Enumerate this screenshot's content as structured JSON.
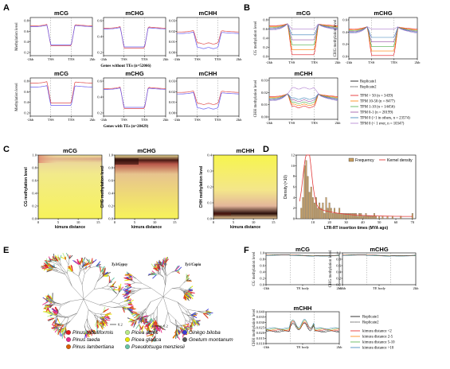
{
  "panel_letters": [
    "A",
    "B",
    "C",
    "D",
    "E",
    "F"
  ],
  "panelA": {
    "titles": [
      "mCG",
      "mCHG",
      "mCHH"
    ],
    "ylabel": "Methylation level",
    "xticks": [
      "-2kb",
      "TSS",
      "TES",
      "2kb"
    ],
    "captions": [
      "Genes without TEs (n=52066)",
      "Genes with TEs (n=28429)"
    ],
    "yticks": [
      [
        "0.8",
        "0.6",
        "0.4",
        "0.2"
      ],
      [
        "0.6",
        "0.4",
        "0.2"
      ],
      [
        "0.03",
        "0.02",
        "0.01",
        "0.00"
      ],
      [
        "0.8",
        "0.6",
        "0.4",
        "0.2"
      ],
      [
        "0.6",
        "0.4",
        "0.2"
      ],
      [
        "0.03",
        "0.02",
        "0.01",
        "0.00"
      ]
    ]
  },
  "panelB": {
    "titles": [
      "mCG",
      "mCHG",
      "mCHH"
    ],
    "ylabels": [
      "CG methylation level",
      "CHG methylation level",
      "CHH methylation level"
    ],
    "xticks": [
      "-2kb",
      "TSS",
      "TES",
      "2kb"
    ],
    "yticks": [
      [
        "0.8",
        "0.6",
        "0.4",
        "0.2",
        "0.0"
      ],
      [
        "0.6",
        "0.4",
        "0.2",
        "0.0"
      ],
      [
        "0.03",
        "0.02",
        "0.01",
        "0.00"
      ]
    ],
    "legend": [
      {
        "label": "Replicate1",
        "color": "#000000",
        "style": "solid"
      },
      {
        "label": "Replicate2",
        "color": "#000000",
        "style": "dash"
      },
      {
        "label": "TPM > 50 (n = 3439)",
        "color": "#e41a1c",
        "style": "solid"
      },
      {
        "label": "TPM 10-50 (n = 8477)",
        "color": "#ff7f00",
        "style": "solid"
      },
      {
        "label": "TPM 1-10 (n = 14456)",
        "color": "#4daf4a",
        "style": "solid"
      },
      {
        "label": "TPM 0-1 (n = 20199)",
        "color": "#984ea3",
        "style": "solid"
      },
      {
        "label": "TPM 0 (>1 in others, n = 23574)",
        "color": "#377eb8",
        "style": "solid"
      },
      {
        "label": "TPM 0 (< 1 ever, n = 10347)",
        "color": "#b07fd0",
        "style": "solid"
      }
    ]
  },
  "panelC": {
    "titles": [
      "mCG",
      "mCHG",
      "mCHH"
    ],
    "ylabels": [
      "CG methylation level",
      "CHG methylation level",
      "CHH methylation level"
    ],
    "xlabel": "kimura distance",
    "xticks": [
      "0",
      "5",
      "10",
      "15"
    ],
    "yticks": [
      [
        "1.0",
        "0.8",
        "0.6",
        "0.4",
        "0.2",
        "0.0"
      ],
      [
        "1.0",
        "0.8",
        "0.6",
        "0.4",
        "0.2",
        "0.0"
      ],
      [
        "0.4",
        "0.3",
        "0.2",
        "0.1",
        "0.0"
      ]
    ]
  },
  "panelD": {
    "ylabel": "Density (×10)",
    "xlabel": "LTR-RT insertion times (MYA ago)",
    "xticks": [
      "10",
      "20",
      "30",
      "40",
      "50",
      "60",
      "70"
    ],
    "yticks": [
      "12",
      "10",
      "8",
      "6",
      "4",
      "2",
      "0"
    ],
    "legend": [
      "Frequency",
      "Kernel density"
    ],
    "colors": {
      "bar": "#c9a063",
      "line": "#e23b3b"
    }
  },
  "panelE": {
    "tree_titles": [
      "Ty3/Gypsy",
      "Ty1/Copia"
    ],
    "scale": "0.2",
    "species": [
      {
        "name": "Pinus tabuliformis",
        "color": "#e41a1c"
      },
      {
        "name": "Pinus taeda",
        "color": "#e7298a"
      },
      {
        "name": "Pinus lambertiana",
        "color": "#d95f02"
      },
      {
        "name": "Picea abies",
        "color": "#b8e986"
      },
      {
        "name": "Picea glauca",
        "color": "#e6e600"
      },
      {
        "name": "Pseudotsuga menziesii",
        "color": "#66c2a5"
      },
      {
        "name": "Ginkgo biloba",
        "color": "#3b3bd6"
      },
      {
        "name": "Gnetum montanum",
        "color": "#555555"
      }
    ]
  },
  "panelF": {
    "titles": [
      "mCG",
      "mCHG",
      "mCHH"
    ],
    "ylabels": [
      "CG methylation level",
      "CHG methylation level",
      "CHH methylation level"
    ],
    "xticks": [
      "-2kb",
      "TE body",
      "2kb"
    ],
    "yticks": [
      [
        "1.0",
        "0.8",
        "0.6",
        "0.4",
        "0.2",
        "0.0"
      ],
      [
        "1.0",
        "0.8",
        "0.6",
        "0.4",
        "0.2",
        "0.0"
      ],
      [
        "0.040",
        "0.035",
        "0.030",
        "0.025",
        "0.020",
        "0.015",
        "0.010"
      ]
    ],
    "legend": [
      {
        "label": "Replicate1",
        "color": "#000000",
        "style": "solid"
      },
      {
        "label": "Replicate2",
        "color": "#000000",
        "style": "dash"
      },
      {
        "label": "kimura distance <2",
        "color": "#e41a1c",
        "style": "solid"
      },
      {
        "label": "kimura distance 2-5",
        "color": "#ff7f00",
        "style": "solid"
      },
      {
        "label": "kimura distance 5-10",
        "color": "#4daf4a",
        "style": "solid"
      },
      {
        "label": "kimura distance >10",
        "color": "#377eb8",
        "style": "solid"
      }
    ]
  },
  "chart_data": [
    {
      "type": "line",
      "panel": "A",
      "x": [
        "-2kb",
        "TSS",
        "TES",
        "2kb"
      ],
      "series": [
        {
          "name": "Replicate1",
          "values": [
            0.78,
            0.25,
            0.25,
            0.78
          ]
        },
        {
          "name": "Replicate2",
          "values": [
            0.77,
            0.26,
            0.26,
            0.77
          ]
        }
      ]
    },
    {
      "type": "bar",
      "panel": "D",
      "categories": [
        3,
        4,
        5,
        6,
        7,
        8,
        9,
        10,
        11,
        12,
        13,
        14,
        15,
        16,
        17,
        18,
        19,
        20,
        21,
        22,
        23,
        24,
        25,
        26,
        27,
        28,
        29,
        30,
        31,
        32,
        33,
        34,
        35,
        36,
        37,
        38,
        39,
        40,
        41,
        42,
        43,
        44,
        45,
        46,
        47,
        48,
        50,
        52,
        55,
        58,
        63,
        70
      ],
      "values": [
        2,
        4,
        10,
        11,
        8,
        5,
        6,
        4,
        3,
        4,
        2,
        3,
        2,
        3,
        1,
        4,
        2,
        3,
        2,
        1,
        2,
        1,
        1,
        2,
        1,
        1,
        1,
        1,
        1,
        1,
        1,
        1,
        1,
        1,
        0.5,
        1,
        1,
        0.5,
        0.5,
        1,
        0.5,
        0.5,
        0.5,
        0.5,
        1,
        0.5,
        0.5,
        0.5,
        0.5,
        0.5,
        0.5,
        1
      ],
      "ylim": [
        0,
        12
      ]
    }
  ]
}
